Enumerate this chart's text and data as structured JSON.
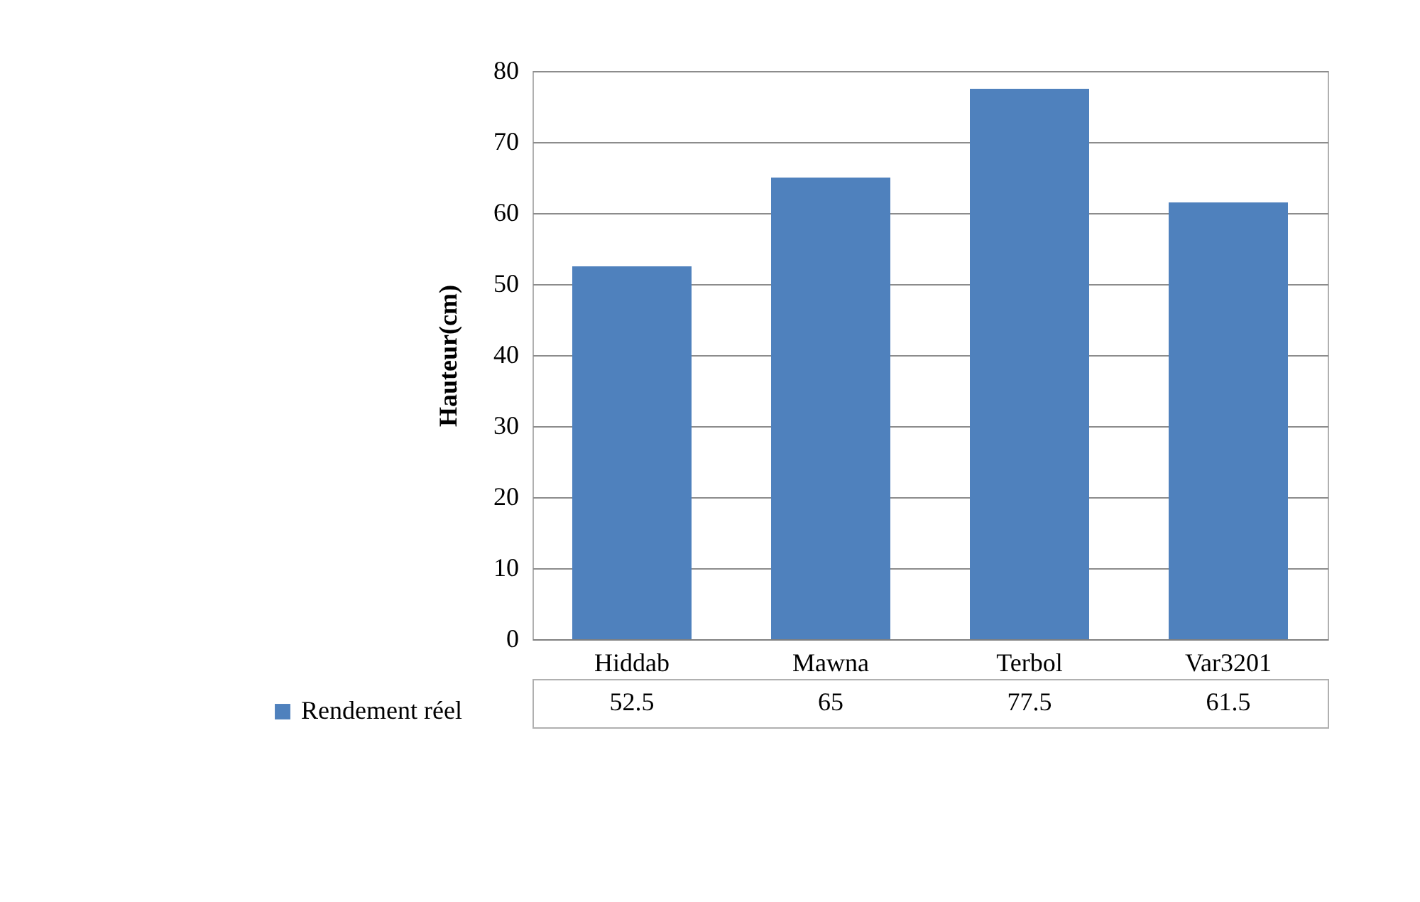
{
  "chart_data": {
    "type": "bar",
    "ylabel": "Hauteur(cm)",
    "categories": [
      "Hiddab",
      "Mawna",
      "Terbol",
      "Var3201"
    ],
    "series": [
      {
        "name": "Rendement réel",
        "color": "#4f81bd",
        "values": [
          52.5,
          65,
          77.5,
          61.5
        ]
      }
    ],
    "ylim": [
      0,
      80
    ],
    "yticks": [
      0,
      10,
      20,
      30,
      40,
      50,
      60,
      70,
      80
    ],
    "grid": "y",
    "legend": "bottom left",
    "data_labels": true
  }
}
